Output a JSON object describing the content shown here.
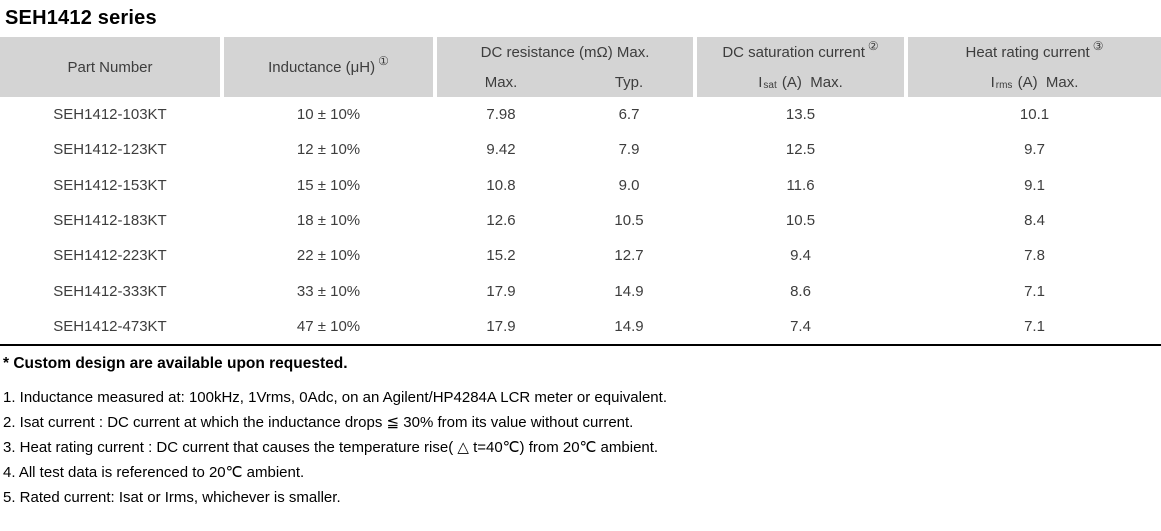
{
  "title": "SEH1412 series",
  "table": {
    "columns": {
      "part_number": "Part Number",
      "inductance": "Inductance (μH)",
      "inductance_note": "①",
      "dc_resistance_group": "DC resistance (mΩ) Max.",
      "dc_resistance_max": "Max.",
      "dc_resistance_typ": "Typ.",
      "dc_saturation_group": "DC saturation current",
      "dc_saturation_note": "②",
      "isat_prefix": "I",
      "isat_sub": "sat",
      "isat_suffix": " (A)  Max.",
      "heat_rating_group": "Heat rating current",
      "heat_rating_note": "③",
      "irms_prefix": "I",
      "irms_sub": "rms",
      "irms_suffix": " (A)  Max."
    },
    "rows": [
      {
        "part_number": "SEH1412-103KT",
        "inductance": "10 ± 10%",
        "rdc_max": "7.98",
        "rdc_typ": "6.7",
        "isat": "13.5",
        "irms": "10.1"
      },
      {
        "part_number": "SEH1412-123KT",
        "inductance": "12 ± 10%",
        "rdc_max": "9.42",
        "rdc_typ": "7.9",
        "isat": "12.5",
        "irms": "9.7"
      },
      {
        "part_number": "SEH1412-153KT",
        "inductance": "15 ± 10%",
        "rdc_max": "10.8",
        "rdc_typ": "9.0",
        "isat": "11.6",
        "irms": "9.1"
      },
      {
        "part_number": "SEH1412-183KT",
        "inductance": "18 ± 10%",
        "rdc_max": "12.6",
        "rdc_typ": "10.5",
        "isat": "10.5",
        "irms": "8.4"
      },
      {
        "part_number": "SEH1412-223KT",
        "inductance": "22 ± 10%",
        "rdc_max": "15.2",
        "rdc_typ": "12.7",
        "isat": "9.4",
        "irms": "7.8"
      },
      {
        "part_number": "SEH1412-333KT",
        "inductance": "33 ± 10%",
        "rdc_max": "17.9",
        "rdc_typ": "14.9",
        "isat": "8.6",
        "irms": "7.1"
      },
      {
        "part_number": "SEH1412-473KT",
        "inductance": "47 ± 10%",
        "rdc_max": "17.9",
        "rdc_typ": "14.9",
        "isat": "7.4",
        "irms": "7.1"
      }
    ]
  },
  "notes": {
    "custom": "* Custom design are available upon requested.",
    "items": [
      "1. Inductance measured at: 100kHz, 1Vrms, 0Adc, on an Agilent/HP4284A LCR meter or equivalent.",
      "2. Isat current : DC current at which the inductance drops ≦ 30% from its value without current.",
      "3. Heat rating current : DC current that causes the temperature rise( △ t=40℃) from 20℃ ambient.",
      "4. All test data is referenced to 20℃ ambient.",
      "5. Rated current: Isat or Irms, whichever is smaller."
    ]
  },
  "colors": {
    "header_bg": "#d4d4d4",
    "table_text": "#3d3d3d",
    "note_text": "#000000",
    "table_bottom_rule": "#000000"
  }
}
